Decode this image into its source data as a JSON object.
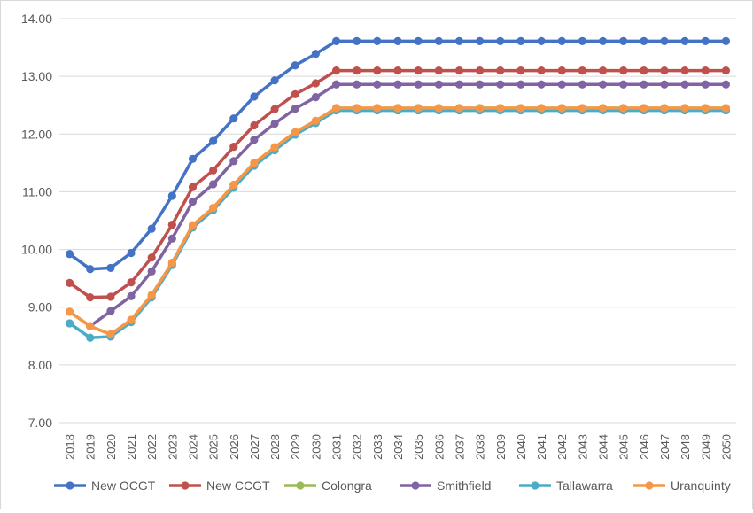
{
  "chart_data": {
    "type": "line",
    "title": "",
    "xlabel": "",
    "ylabel": "",
    "ylim": [
      7.0,
      14.0
    ],
    "y_ticks": [
      "7.00",
      "8.00",
      "9.00",
      "10.00",
      "11.00",
      "12.00",
      "13.00",
      "14.00"
    ],
    "grid": "horizontal",
    "legend_position": "bottom",
    "categories": [
      "2018",
      "2019",
      "2020",
      "2021",
      "2022",
      "2023",
      "2024",
      "2025",
      "2026",
      "2027",
      "2028",
      "2029",
      "2030",
      "2031",
      "2032",
      "2033",
      "2034",
      "2035",
      "2036",
      "2037",
      "2038",
      "2039",
      "2040",
      "2041",
      "2042",
      "2043",
      "2044",
      "2045",
      "2046",
      "2047",
      "2048",
      "2049",
      "2050"
    ],
    "series": [
      {
        "name": "New OCGT",
        "color": "#4472C4",
        "values": [
          9.92,
          9.66,
          9.68,
          9.94,
          10.36,
          10.93,
          11.57,
          11.88,
          12.27,
          12.65,
          12.93,
          13.19,
          13.39,
          13.61,
          13.61,
          13.61,
          13.61,
          13.61,
          13.61,
          13.61,
          13.61,
          13.61,
          13.61,
          13.61,
          13.61,
          13.61,
          13.61,
          13.61,
          13.61,
          13.61,
          13.61,
          13.61,
          13.61
        ]
      },
      {
        "name": "New CCGT",
        "color": "#C0504D",
        "values": [
          9.42,
          9.17,
          9.18,
          9.43,
          9.86,
          10.43,
          11.08,
          11.37,
          11.78,
          12.15,
          12.43,
          12.69,
          12.88,
          13.1,
          13.1,
          13.1,
          13.1,
          13.1,
          13.1,
          13.1,
          13.1,
          13.1,
          13.1,
          13.1,
          13.1,
          13.1,
          13.1,
          13.1,
          13.1,
          13.1,
          13.1,
          13.1,
          13.1
        ]
      },
      {
        "name": "Colongra",
        "color": "#9BBB59",
        "values": [
          8.92,
          8.67,
          8.53,
          8.78,
          9.21,
          9.77,
          10.42,
          10.72,
          11.12,
          11.5,
          11.77,
          12.03,
          12.23,
          12.45,
          12.45,
          12.45,
          12.45,
          12.45,
          12.45,
          12.45,
          12.45,
          12.45,
          12.45,
          12.45,
          12.45,
          12.45,
          12.45,
          12.45,
          12.45,
          12.45,
          12.45,
          12.45,
          12.45
        ]
      },
      {
        "name": "Smithfield",
        "color": "#8064A2",
        "values": [
          null,
          8.67,
          8.93,
          9.19,
          9.62,
          10.19,
          10.83,
          11.13,
          11.53,
          11.9,
          12.18,
          12.44,
          12.64,
          12.86,
          12.86,
          12.86,
          12.86,
          12.86,
          12.86,
          12.86,
          12.86,
          12.86,
          12.86,
          12.86,
          12.86,
          12.86,
          12.86,
          12.86,
          12.86,
          12.86,
          12.86,
          12.86,
          12.86
        ]
      },
      {
        "name": "Tallawarra",
        "color": "#4BACC6",
        "values": [
          8.72,
          8.47,
          8.49,
          8.74,
          9.17,
          9.73,
          10.38,
          10.68,
          11.07,
          11.45,
          11.72,
          11.99,
          12.19,
          12.41,
          12.41,
          12.41,
          12.41,
          12.41,
          12.41,
          12.41,
          12.41,
          12.41,
          12.41,
          12.41,
          12.41,
          12.41,
          12.41,
          12.41,
          12.41,
          12.41,
          12.41,
          12.41,
          12.41
        ]
      },
      {
        "name": "Uranquinty",
        "color": "#F79646",
        "values": [
          8.92,
          8.67,
          8.53,
          8.78,
          9.21,
          9.77,
          10.42,
          10.72,
          11.12,
          11.5,
          11.77,
          12.03,
          12.23,
          12.45,
          12.45,
          12.45,
          12.45,
          12.45,
          12.45,
          12.45,
          12.45,
          12.45,
          12.45,
          12.45,
          12.45,
          12.45,
          12.45,
          12.45,
          12.45,
          12.45,
          12.45,
          12.45,
          12.45
        ]
      }
    ]
  }
}
